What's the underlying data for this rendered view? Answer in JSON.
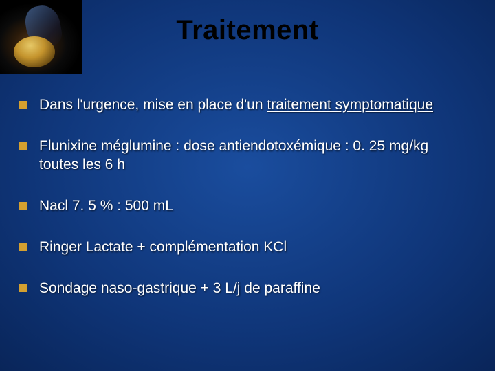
{
  "slide": {
    "title": "Traitement",
    "title_color": "#000000",
    "title_fontsize": 40,
    "background_gradient": [
      "#1a4d9e",
      "#0f3578",
      "#061d4a",
      "#020b24"
    ],
    "bullet_color": "#d4a030",
    "text_color": "#ffffff",
    "body_fontsize": 21,
    "bullets": [
      {
        "prefix": "Dans l'urgence, mise en place d'un ",
        "underlined": "traitement symptomatique",
        "suffix": ""
      },
      {
        "prefix": "Flunixine méglumine : dose antiendotoxémique : 0. 25 mg/kg toutes les 6 h",
        "underlined": "",
        "suffix": ""
      },
      {
        "prefix": "Nacl 7. 5 % : 500 mL",
        "underlined": "",
        "suffix": ""
      },
      {
        "prefix": "Ringer Lactate + complémentation KCl",
        "underlined": "",
        "suffix": ""
      },
      {
        "prefix": "Sondage naso-gastrique + 3 L/j de paraffine",
        "underlined": "",
        "suffix": ""
      }
    ],
    "corner_image": {
      "description": "horse-silhouette-on-dark",
      "highlight_color": "#f5d870",
      "shadow_color": "#000000"
    }
  }
}
